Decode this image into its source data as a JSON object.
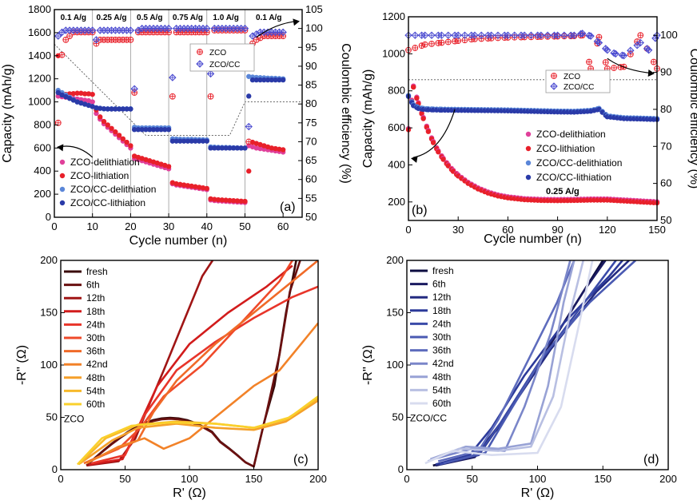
{
  "chart_data": [
    {
      "panel": "(a)",
      "type": "scatter",
      "xlabel": "Cycle number (n)",
      "ylabel": "Capacity (mAh/g)",
      "y2label": "Coulombic efficiency (%)",
      "xlim": [
        0,
        65
      ],
      "ylim": [
        0,
        1800
      ],
      "y2lim": [
        50,
        105
      ],
      "xticks": [
        0,
        10,
        20,
        30,
        40,
        50,
        60
      ],
      "yticks": [
        0,
        200,
        400,
        600,
        800,
        1000,
        1200,
        1400,
        1600,
        1800
      ],
      "y2ticks": [
        50,
        55,
        60,
        65,
        70,
        75,
        80,
        85,
        90,
        95,
        100,
        105
      ],
      "rate_labels": [
        "0.1 A/g",
        "0.25 A/g",
        "0.5 A/g",
        "0.75 A/g",
        "1.0 A/g",
        "0.1 A/g"
      ],
      "rate_boundaries": [
        10,
        20,
        30,
        40,
        50
      ],
      "series": [
        {
          "name": "ZCO-delithiation",
          "color": "#e0409a",
          "marker": "circle",
          "x": [
            1,
            2,
            3,
            4,
            5,
            6,
            7,
            8,
            9,
            10,
            11,
            12,
            13,
            14,
            15,
            16,
            17,
            18,
            19,
            20,
            21,
            22,
            23,
            24,
            25,
            26,
            27,
            28,
            29,
            30,
            31,
            32,
            33,
            34,
            35,
            36,
            37,
            38,
            39,
            40,
            41,
            42,
            43,
            44,
            45,
            46,
            47,
            48,
            49,
            50,
            51,
            52,
            53,
            54,
            55,
            56,
            57,
            58,
            59,
            60
          ],
          "y": [
            1050,
            1045,
            1040,
            1035,
            1030,
            1025,
            1020,
            1015,
            1010,
            1000,
            900,
            850,
            810,
            780,
            750,
            720,
            690,
            660,
            630,
            600,
            510,
            500,
            490,
            480,
            470,
            460,
            450,
            440,
            430,
            420,
            290,
            280,
            275,
            270,
            265,
            260,
            255,
            250,
            245,
            240,
            150,
            145,
            142,
            140,
            138,
            136,
            134,
            132,
            130,
            128,
            620,
            610,
            600,
            595,
            590,
            585,
            580,
            575,
            570,
            565
          ]
        },
        {
          "name": "ZCO-lithiation",
          "color": "#e8202a",
          "marker": "circle",
          "x": [
            1,
            2,
            3,
            4,
            5,
            6,
            7,
            8,
            9,
            10,
            11,
            12,
            13,
            14,
            15,
            16,
            17,
            18,
            19,
            20,
            21,
            22,
            23,
            24,
            25,
            26,
            27,
            28,
            29,
            30,
            31,
            32,
            33,
            34,
            35,
            36,
            37,
            38,
            39,
            40,
            41,
            42,
            43,
            44,
            45,
            46,
            47,
            48,
            49,
            50,
            51,
            52,
            53,
            54,
            55,
            56,
            57,
            58,
            59,
            60
          ],
          "y": [
            1400,
            1060,
            1065,
            1070,
            1072,
            1075,
            1075,
            1070,
            1070,
            1065,
            930,
            870,
            830,
            800,
            770,
            740,
            710,
            680,
            650,
            620,
            530,
            520,
            510,
            500,
            490,
            480,
            470,
            460,
            450,
            440,
            300,
            290,
            285,
            280,
            275,
            270,
            265,
            260,
            255,
            250,
            160,
            155,
            152,
            150,
            148,
            146,
            144,
            142,
            140,
            138,
            400,
            650,
            640,
            630,
            620,
            610,
            600,
            595,
            590,
            585
          ]
        },
        {
          "name": "ZCO/CC-delithiation",
          "color": "#5a86d8",
          "marker": "circle",
          "x": [
            1,
            2,
            3,
            4,
            5,
            6,
            7,
            8,
            9,
            10,
            11,
            12,
            13,
            14,
            15,
            16,
            17,
            18,
            19,
            20,
            21,
            22,
            23,
            24,
            25,
            26,
            27,
            28,
            29,
            30,
            31,
            32,
            33,
            34,
            35,
            36,
            37,
            38,
            39,
            40,
            41,
            42,
            43,
            44,
            45,
            46,
            47,
            48,
            49,
            50,
            51,
            52,
            53,
            54,
            55,
            56,
            57,
            58,
            59,
            60
          ],
          "y": [
            1100,
            1080,
            1060,
            1040,
            1020,
            1000,
            990,
            980,
            970,
            960,
            950,
            945,
            940,
            940,
            940,
            940,
            940,
            940,
            940,
            940,
            780,
            775,
            775,
            775,
            775,
            775,
            775,
            775,
            775,
            775,
            680,
            678,
            676,
            675,
            675,
            675,
            674,
            673,
            672,
            670,
            610,
            608,
            606,
            605,
            605,
            604,
            603,
            602,
            600,
            600,
            1220,
            1215,
            1212,
            1210,
            1208,
            1206,
            1205,
            1204,
            1202,
            1200
          ]
        },
        {
          "name": "ZCO/CC-lithiation",
          "color": "#2a3aa8",
          "marker": "circle",
          "x": [
            1,
            2,
            3,
            4,
            5,
            6,
            7,
            8,
            9,
            10,
            11,
            12,
            13,
            14,
            15,
            16,
            17,
            18,
            19,
            20,
            21,
            22,
            23,
            24,
            25,
            26,
            27,
            28,
            29,
            30,
            31,
            32,
            33,
            34,
            35,
            36,
            37,
            38,
            39,
            40,
            41,
            42,
            43,
            44,
            45,
            46,
            47,
            48,
            49,
            50,
            51,
            52,
            53,
            54,
            55,
            56,
            57,
            58,
            59,
            60
          ],
          "y": [
            1080,
            1060,
            1045,
            1030,
            1015,
            1000,
            990,
            980,
            970,
            960,
            948,
            944,
            940,
            938,
            938,
            938,
            938,
            938,
            938,
            938,
            760,
            760,
            760,
            760,
            760,
            760,
            760,
            760,
            760,
            760,
            660,
            660,
            660,
            660,
            660,
            660,
            660,
            660,
            660,
            660,
            600,
            600,
            600,
            600,
            600,
            600,
            600,
            600,
            600,
            600,
            1050,
            1190,
            1190,
            1190,
            1190,
            1190,
            1190,
            1190,
            1190,
            1190
          ]
        },
        {
          "name": "ZCO",
          "color": "#e8202a",
          "marker": "circle-plus",
          "axis": "y2",
          "x": [
            1,
            2,
            3,
            4,
            5,
            6,
            7,
            8,
            9,
            10,
            11,
            12,
            13,
            14,
            15,
            16,
            17,
            18,
            19,
            20,
            21,
            22,
            23,
            24,
            25,
            26,
            27,
            28,
            29,
            30,
            31,
            32,
            33,
            34,
            35,
            36,
            37,
            38,
            39,
            40,
            41,
            42,
            43,
            44,
            45,
            46,
            47,
            48,
            49,
            50,
            51,
            52,
            53,
            54,
            55,
            56,
            57,
            58,
            59,
            60
          ],
          "y": [
            75,
            93,
            97,
            98,
            99,
            99,
            99,
            99,
            99,
            99,
            96,
            97,
            97,
            97,
            97,
            97,
            97,
            97,
            97,
            97,
            83,
            99,
            99,
            99,
            99,
            99,
            99,
            99,
            99,
            99,
            82,
            99,
            99,
            99,
            99,
            99,
            99,
            99,
            99,
            99,
            82,
            99.5,
            99.5,
            99.5,
            99.5,
            99.5,
            99.5,
            99.5,
            99.5,
            99.5,
            70,
            96,
            97,
            97.5,
            98,
            98,
            98,
            98,
            98,
            98
          ]
        },
        {
          "name": "ZCO/CC",
          "color": "#4a4ad0",
          "marker": "diamond-plus",
          "axis": "y2",
          "x": [
            1,
            2,
            3,
            4,
            5,
            6,
            7,
            8,
            9,
            10,
            11,
            12,
            13,
            14,
            15,
            16,
            17,
            18,
            19,
            20,
            21,
            22,
            23,
            24,
            25,
            26,
            27,
            28,
            29,
            30,
            31,
            32,
            33,
            34,
            35,
            36,
            37,
            38,
            39,
            40,
            41,
            42,
            43,
            44,
            45,
            46,
            47,
            48,
            49,
            50,
            51,
            52,
            53,
            54,
            55,
            56,
            57,
            58,
            59,
            60
          ],
          "y": [
            98,
            99,
            99.5,
            99.5,
            99.5,
            99.5,
            99.5,
            99.5,
            99.5,
            99.5,
            97,
            99.5,
            99.5,
            99.5,
            99.5,
            99.5,
            99.5,
            99.5,
            99.5,
            99.5,
            84,
            99.5,
            100,
            100,
            100,
            100,
            100,
            100,
            100,
            100,
            87,
            100,
            100,
            100,
            100,
            100,
            100,
            100,
            100,
            100,
            88,
            100,
            100,
            100,
            100,
            100,
            100,
            100,
            100,
            100,
            74,
            98,
            98.5,
            99,
            99,
            99,
            99,
            99,
            99,
            99
          ]
        }
      ]
    },
    {
      "panel": "(b)",
      "type": "scatter",
      "xlabel": "Cycle number (n)",
      "ylabel": "Capacity (mAh/g)",
      "y2label": "Coulombic efficiency (%)",
      "xlim": [
        0,
        150
      ],
      "ylim": [
        100,
        1200
      ],
      "y2lim": [
        50,
        105
      ],
      "xticks": [
        0,
        30,
        60,
        90,
        120,
        150
      ],
      "yticks": [
        200,
        400,
        600,
        800,
        1000,
        1200
      ],
      "y2ticks": [
        50,
        60,
        70,
        80,
        90,
        100
      ],
      "annotation": "0.25 A/g",
      "series_names": [
        "ZCO-delithiation",
        "ZCO-lithiation",
        "ZCO/CC-delithiation",
        "ZCO/CC-lithiation",
        "ZCO",
        "ZCO/CC"
      ],
      "series_colors": [
        "#e0409a",
        "#e8202a",
        "#5a86d8",
        "#2a3aa8",
        "#e8202a",
        "#4a4ad0"
      ],
      "ZCO_capacity_x": [
        0,
        3,
        6,
        9,
        12,
        15,
        18,
        21,
        24,
        27,
        30,
        36,
        42,
        48,
        54,
        60,
        70,
        80,
        90,
        100,
        110,
        120,
        130,
        140,
        150
      ],
      "ZCO_capacity_y": [
        590,
        820,
        730,
        650,
        580,
        520,
        470,
        430,
        395,
        365,
        340,
        300,
        270,
        248,
        232,
        222,
        212,
        208,
        207,
        208,
        210,
        210,
        205,
        200,
        195
      ],
      "ZCOCC_capacity_x": [
        0,
        3,
        6,
        9,
        12,
        15,
        20,
        30,
        40,
        50,
        60,
        70,
        80,
        90,
        100,
        110,
        115,
        120,
        130,
        140,
        150
      ],
      "ZCOCC_capacity_y": [
        770,
        720,
        705,
        700,
        698,
        697,
        696,
        695,
        694,
        693,
        692,
        690,
        688,
        686,
        685,
        690,
        700,
        660,
        650,
        648,
        645
      ],
      "ZCO_ce_x": [
        0,
        10,
        20,
        30,
        40,
        50,
        60,
        70,
        80,
        90,
        100,
        105,
        110,
        115,
        120,
        130,
        140,
        150
      ],
      "ZCO_ce_y": [
        96,
        97.5,
        98,
        98.5,
        99,
        99.2,
        99.4,
        99.5,
        99.6,
        99.7,
        99.8,
        100,
        91,
        99.5,
        91,
        91.5,
        100,
        91
      ],
      "ZCOCC_ce_x": [
        0,
        10,
        20,
        30,
        40,
        50,
        60,
        70,
        80,
        90,
        100,
        105,
        110,
        115,
        120,
        125,
        130,
        140,
        145,
        150
      ],
      "ZCOCC_ce_y": [
        100,
        100,
        100,
        100,
        100,
        100,
        100,
        100,
        100,
        100,
        100,
        100.5,
        99.8,
        98,
        96,
        95,
        94.5,
        98,
        96,
        100
      ]
    },
    {
      "panel": "(c)",
      "type": "line",
      "xlabel": "R' (Ω)",
      "ylabel": "-R'' (Ω)",
      "xlim": [
        0,
        200
      ],
      "ylim": [
        0,
        200
      ],
      "xticks": [
        0,
        50,
        100,
        150,
        200
      ],
      "yticks": [
        0,
        50,
        100,
        150,
        200
      ],
      "legend_title": "ZCO",
      "series": [
        {
          "name": "fresh",
          "color": "#3a0a0a"
        },
        {
          "name": "6th",
          "color": "#6a1010"
        },
        {
          "name": "12th",
          "color": "#a01515"
        },
        {
          "name": "18th",
          "color": "#d21c1c"
        },
        {
          "name": "24th",
          "color": "#e8352a"
        },
        {
          "name": "30th",
          "color": "#ef4a2a"
        },
        {
          "name": "36th",
          "color": "#f06a28"
        },
        {
          "name": "42nd",
          "color": "#f28228"
        },
        {
          "name": "48th",
          "color": "#f5a02a"
        },
        {
          "name": "54th",
          "color": "#f7b92a"
        },
        {
          "name": "60th",
          "color": "#fad02c"
        }
      ]
    },
    {
      "panel": "(d)",
      "type": "line",
      "xlabel": "R' (Ω)",
      "ylabel": "-R'' (Ω)",
      "xlim": [
        0,
        200
      ],
      "ylim": [
        0,
        200
      ],
      "xticks": [
        0,
        50,
        100,
        150,
        200
      ],
      "yticks": [
        0,
        50,
        100,
        150,
        200
      ],
      "legend_title": "ZCO/CC",
      "series": [
        {
          "name": "fresh",
          "color": "#0c0c40"
        },
        {
          "name": "6th",
          "color": "#1a1a60"
        },
        {
          "name": "12th",
          "color": "#232a80"
        },
        {
          "name": "18th",
          "color": "#2c3a9a"
        },
        {
          "name": "24th",
          "color": "#3a4aa8"
        },
        {
          "name": "30th",
          "color": "#4a5ab2"
        },
        {
          "name": "36th",
          "color": "#5e6cbd"
        },
        {
          "name": "42nd",
          "color": "#7a86c9"
        },
        {
          "name": "48th",
          "color": "#98a2d5"
        },
        {
          "name": "54th",
          "color": "#b8bfe2"
        },
        {
          "name": "60th",
          "color": "#d8dcef"
        }
      ]
    }
  ]
}
